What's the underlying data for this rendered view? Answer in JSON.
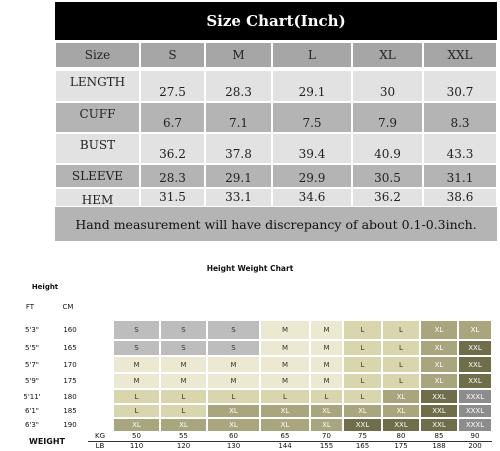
{
  "size_chart": {
    "title": "Size Chart(Inch)",
    "header": [
      "Size",
      "S",
      "M",
      "L",
      "XL",
      "XXL"
    ],
    "rows": [
      [
        "LENGTH",
        "27.5",
        "28.3",
        "29.1",
        "30",
        "30.7"
      ],
      [
        "CUFF",
        "6.7",
        "7.1",
        "7.5",
        "7.9",
        "8.3"
      ],
      [
        "BUST",
        "36.2",
        "37.8",
        "39.4",
        "40.9",
        "43.3"
      ],
      [
        "SLEEVE",
        "28.3",
        "29.1",
        "29.9",
        "30.5",
        "31.1"
      ],
      [
        "HEM",
        "31.5",
        "33.1",
        "34.6",
        "36.2",
        "38.6"
      ]
    ],
    "note": "Hand measurement will have discrepancy of about 0.1-0.3inch."
  },
  "height_weight": {
    "title": "Height Weight Chart",
    "height_label": "Height",
    "ft_label": "FT",
    "cm_label": "CM",
    "weight_label": "WEIGHT",
    "kg_label": "KG",
    "lb_label": "LB",
    "ft": [
      "5'3\"",
      "5'5\"",
      "5'7\"",
      "5'9\"",
      "5'11'",
      "6'1\"",
      "6'3\""
    ],
    "cm": [
      "160",
      "165",
      "170",
      "175",
      "180",
      "185",
      "190"
    ],
    "kg": [
      "50",
      "55",
      "60",
      "65",
      "70",
      "75",
      "80",
      "85",
      "90"
    ],
    "lb": [
      "110",
      "120",
      "130",
      "144",
      "155",
      "165",
      "175",
      "188",
      "200"
    ],
    "cells": [
      [
        "S",
        "S",
        "S",
        "M",
        "M",
        "L",
        "L",
        "XL",
        "XL"
      ],
      [
        "S",
        "S",
        "S",
        "M",
        "M",
        "L",
        "L",
        "XL",
        "XXL"
      ],
      [
        "M",
        "M",
        "M",
        "M",
        "M",
        "L",
        "L",
        "XL",
        "XXL"
      ],
      [
        "M",
        "M",
        "M",
        "M",
        "M",
        "L",
        "L",
        "XL",
        "XXL"
      ],
      [
        "L",
        "L",
        "L",
        "L",
        "L",
        "L",
        "XL",
        "XXL",
        "XXXL"
      ],
      [
        "L",
        "L",
        "XL",
        "XL",
        "XL",
        "XL",
        "XL",
        "XXL",
        "XXXL"
      ],
      [
        "XL",
        "XL",
        "XL",
        "XL",
        "XL",
        "XXL",
        "XXL",
        "XXL",
        "XXXL"
      ]
    ],
    "colors": {
      "S": "#bdbdbd",
      "M": "#ede8d2",
      "L": "#d9d5ad",
      "XL": "#a9a57c",
      "XXL": "#6f6d4a",
      "XXXL": "#8c8c8c"
    }
  }
}
